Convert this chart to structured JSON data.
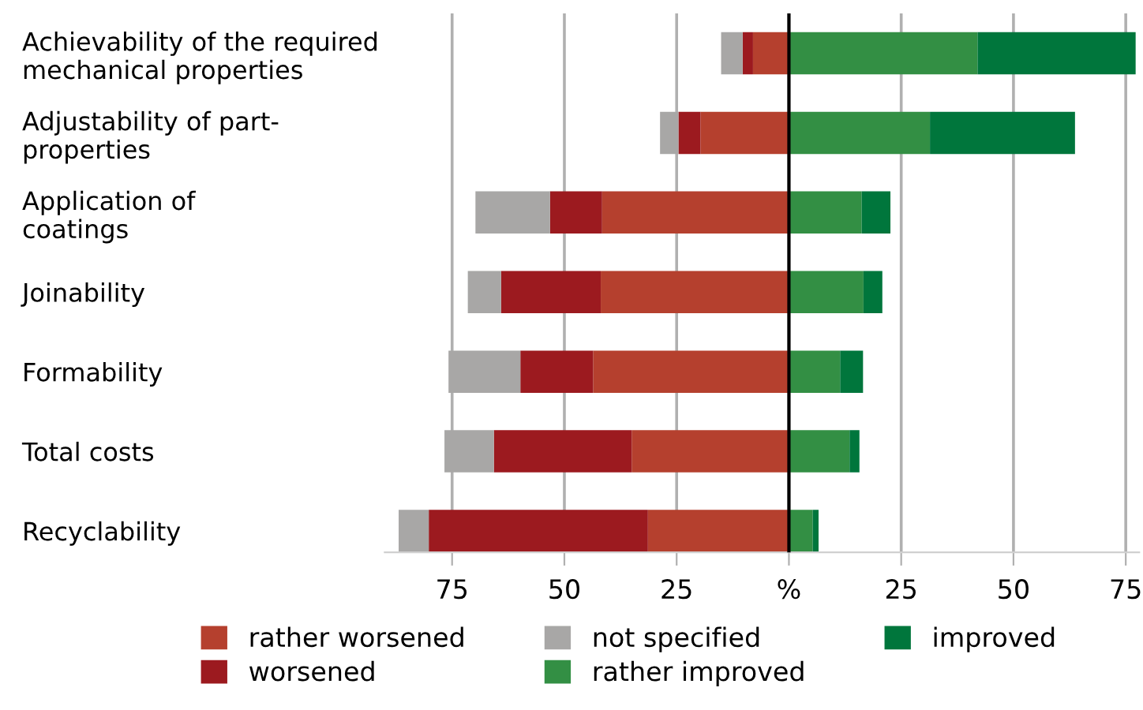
{
  "chart_data": {
    "type": "bar",
    "orientation": "horizontal",
    "stacked": true,
    "categories": [
      "Achievability of the required\nmechanical properties",
      "Adjustability of part-\nproperties",
      "Application of\ncoatings",
      "Joinability",
      "Formability",
      "Total costs",
      "Recyclability"
    ],
    "series": [
      {
        "name": "rather worsened",
        "color": "#b5402e",
        "values": [
          -8.0,
          -19.7,
          -41.6,
          -41.9,
          -43.6,
          -35.0,
          -31.4
        ]
      },
      {
        "name": "worsened",
        "color": "#9c1a1f",
        "values": [
          -2.3,
          -4.9,
          -11.6,
          -22.2,
          -16.2,
          -30.7,
          -48.8
        ]
      },
      {
        "name": "not specified",
        "color": "#a8a7a6",
        "values": [
          -4.8,
          -4.1,
          -16.6,
          -7.4,
          -16.0,
          -11.0,
          -6.7
        ]
      },
      {
        "name": "rather improved",
        "color": "#338f44",
        "values": [
          42.0,
          31.4,
          16.2,
          16.6,
          11.4,
          13.5,
          5.3
        ]
      },
      {
        "name": "improved",
        "color": "#00763c",
        "values": [
          35.2,
          32.3,
          6.4,
          4.2,
          5.1,
          2.2,
          1.3
        ]
      }
    ],
    "xlim": [
      -90,
      78
    ],
    "xticks": [
      {
        "value": -75,
        "label": "75"
      },
      {
        "value": -50,
        "label": "50"
      },
      {
        "value": -25,
        "label": "25"
      },
      {
        "value": 0,
        "label": "%"
      },
      25,
      50,
      75
    ],
    "ref_lines": [
      {
        "axis": "x",
        "value": 0,
        "color": "#000000"
      }
    ],
    "grid": "x",
    "legend": "bottom"
  }
}
